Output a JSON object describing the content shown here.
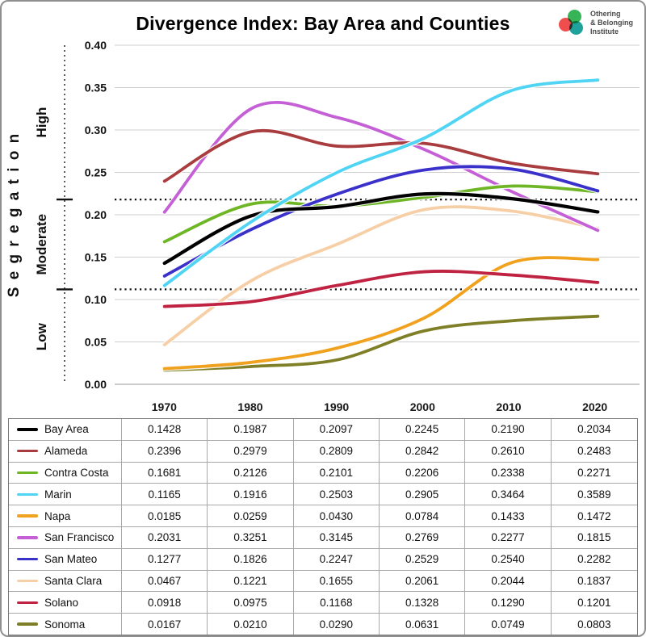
{
  "title": "Divergence Index: Bay Area and Counties",
  "logo": {
    "name_lines": [
      "Othering",
      "& Belonging",
      "Institute"
    ]
  },
  "y_axis": {
    "label": "S e g r e g a t i o n",
    "zones": [
      "High",
      "Moderate",
      "Low"
    ]
  },
  "chart_data": {
    "type": "line",
    "x": [
      1970,
      1980,
      1990,
      2000,
      2010,
      2020
    ],
    "ylim": [
      0,
      0.4
    ],
    "y_ticks": [
      0.4,
      0.35,
      0.3,
      0.25,
      0.2,
      0.15,
      0.1,
      0.05,
      0.0
    ],
    "thresholds": [
      0.218,
      0.112
    ],
    "grid": true,
    "legend_position": "table-left-column",
    "title": "Divergence Index: Bay Area and Counties",
    "series": [
      {
        "name": "Bay Area",
        "color": "#000000",
        "values": [
          0.1428,
          0.1987,
          0.2097,
          0.2245,
          0.219,
          0.2034
        ]
      },
      {
        "name": "Alameda",
        "color": "#a83c3e",
        "values": [
          0.2396,
          0.2979,
          0.2809,
          0.2842,
          0.261,
          0.2483
        ]
      },
      {
        "name": "Contra Costa",
        "color": "#6eb626",
        "values": [
          0.1681,
          0.2126,
          0.2101,
          0.2206,
          0.2338,
          0.2271
        ]
      },
      {
        "name": "Marin",
        "color": "#4fd4f4",
        "values": [
          0.1165,
          0.1916,
          0.2503,
          0.2905,
          0.3464,
          0.3589
        ]
      },
      {
        "name": "Napa",
        "color": "#f0a11d",
        "values": [
          0.0185,
          0.0259,
          0.043,
          0.0784,
          0.1433,
          0.1472
        ]
      },
      {
        "name": "San Francisco",
        "color": "#c45fd6",
        "values": [
          0.2031,
          0.3251,
          0.3145,
          0.2769,
          0.2277,
          0.1815
        ]
      },
      {
        "name": "San Mateo",
        "color": "#3a31cb",
        "values": [
          0.1277,
          0.1826,
          0.2247,
          0.2529,
          0.254,
          0.2282
        ]
      },
      {
        "name": "Santa Clara",
        "color": "#f6cfa6",
        "values": [
          0.0467,
          0.1221,
          0.1655,
          0.2061,
          0.2044,
          0.1837
        ]
      },
      {
        "name": "Solano",
        "color": "#bf2341",
        "values": [
          0.0918,
          0.0975,
          0.1168,
          0.1328,
          0.129,
          0.1201
        ]
      },
      {
        "name": "Sonoma",
        "color": "#7e7f27",
        "values": [
          0.0167,
          0.021,
          0.029,
          0.0631,
          0.0749,
          0.0803
        ]
      }
    ]
  }
}
